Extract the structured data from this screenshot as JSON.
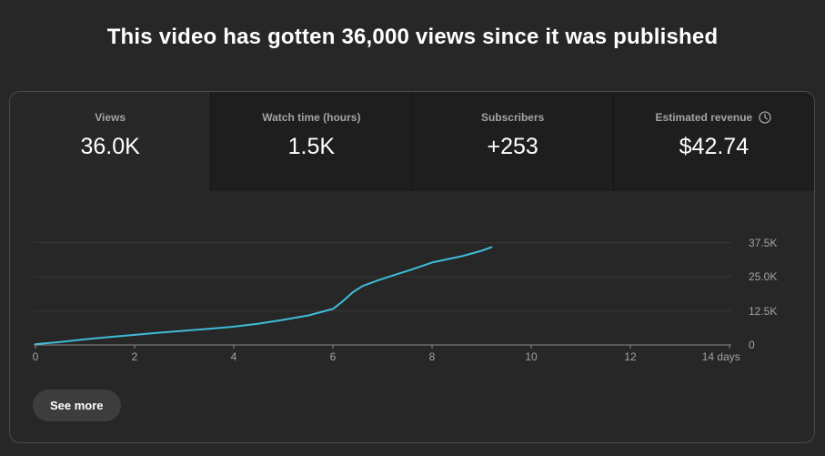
{
  "page": {
    "title": "This video has gotten 36,000 views since it was published"
  },
  "metrics": {
    "tabs": [
      {
        "label": "Views",
        "value": "36.0K",
        "selected": true
      },
      {
        "label": "Watch time (hours)",
        "value": "1.5K",
        "selected": false
      },
      {
        "label": "Subscribers",
        "value": "+253",
        "selected": false
      },
      {
        "label": "Estimated revenue",
        "value": "$42.74",
        "selected": false,
        "icon": "clock-icon"
      }
    ]
  },
  "chart_data": {
    "type": "line",
    "title": "Views over time since publish",
    "series_name": "Views",
    "x": [
      0,
      0.5,
      1,
      1.5,
      2,
      2.5,
      3,
      3.5,
      4,
      4.5,
      5,
      5.5,
      6,
      6.2,
      6.4,
      6.6,
      6.9,
      7.2,
      7.6,
      8,
      8.6,
      9,
      9.2
    ],
    "values": [
      300,
      1100,
      2100,
      2900,
      3700,
      4500,
      5200,
      5900,
      6700,
      7800,
      9200,
      10800,
      13200,
      16000,
      19300,
      21600,
      23600,
      25400,
      27700,
      30200,
      32500,
      34500,
      35800
    ],
    "xlabel": "days",
    "xlim": [
      0,
      14
    ],
    "ylim": [
      0,
      41700
    ],
    "x_tick_days": [
      0,
      2,
      4,
      6,
      8,
      10,
      12,
      14
    ],
    "x_ticks": [
      "0",
      "2",
      "4",
      "6",
      "8",
      "10",
      "12",
      "14 days"
    ],
    "y_tick_values": [
      0,
      12500,
      25000,
      37500
    ],
    "y_ticks": [
      "0",
      "12.5K",
      "25.0K",
      "37.5K"
    ],
    "grid": true,
    "legend": "none",
    "line_color": "#3fbcd9",
    "grid_color": "#373737",
    "axis_color": "#8a8a8a"
  },
  "footer": {
    "see_more_label": "See more"
  },
  "colors": {
    "page_bg": "#272727",
    "inactive_tab_bg": "#1e1e1e",
    "card_border": "#4b4b4b",
    "text_secondary": "#a3a3a3",
    "button_bg": "#3d3d3d"
  }
}
